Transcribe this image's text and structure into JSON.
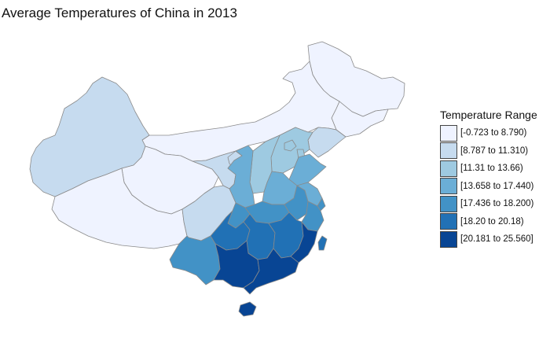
{
  "title": "Average Temperatures of China in 2013",
  "legend": {
    "title": "Temperature Range",
    "items": [
      {
        "label": "[-0.723 to 8.790)",
        "color": "#eff3ff"
      },
      {
        "label": "[8.787 to 11.310)",
        "color": "#c6dbef"
      },
      {
        "label": "[11.31 to 13.66)",
        "color": "#9ecae1"
      },
      {
        "label": "[13.658 to 17.440)",
        "color": "#6baed6"
      },
      {
        "label": "[17.436 to 18.200)",
        "color": "#4292c6"
      },
      {
        "label": "[18.20 to 20.18)",
        "color": "#2171b5"
      },
      {
        "label": "[20.181 to 25.560]",
        "color": "#084594"
      }
    ]
  },
  "regions": [
    {
      "name": "heilongjiang",
      "class": 0
    },
    {
      "name": "jilin",
      "class": 0
    },
    {
      "name": "inner-mongolia",
      "class": 0
    },
    {
      "name": "xinjiang",
      "class": 1
    },
    {
      "name": "qinghai",
      "class": 0
    },
    {
      "name": "tibet",
      "class": 0
    },
    {
      "name": "gansu",
      "class": 1
    },
    {
      "name": "ningxia",
      "class": 1
    },
    {
      "name": "liaoning",
      "class": 1
    },
    {
      "name": "hebei",
      "class": 2
    },
    {
      "name": "beijing",
      "class": 2
    },
    {
      "name": "tianjin",
      "class": 2
    },
    {
      "name": "shanxi",
      "class": 2
    },
    {
      "name": "shaanxi",
      "class": 3
    },
    {
      "name": "shandong",
      "class": 3
    },
    {
      "name": "henan",
      "class": 3
    },
    {
      "name": "sichuan",
      "class": 1
    },
    {
      "name": "chongqing",
      "class": 4
    },
    {
      "name": "hubei",
      "class": 4
    },
    {
      "name": "anhui",
      "class": 4
    },
    {
      "name": "jiangsu",
      "class": 3
    },
    {
      "name": "shanghai",
      "class": 4
    },
    {
      "name": "zhejiang",
      "class": 4
    },
    {
      "name": "guizhou",
      "class": 5
    },
    {
      "name": "hunan",
      "class": 5
    },
    {
      "name": "jiangxi",
      "class": 5
    },
    {
      "name": "fujian",
      "class": 6
    },
    {
      "name": "yunnan",
      "class": 4
    },
    {
      "name": "guangxi",
      "class": 6
    },
    {
      "name": "guangdong",
      "class": 6
    },
    {
      "name": "hainan",
      "class": 6
    },
    {
      "name": "taiwan",
      "class": 5
    }
  ]
}
